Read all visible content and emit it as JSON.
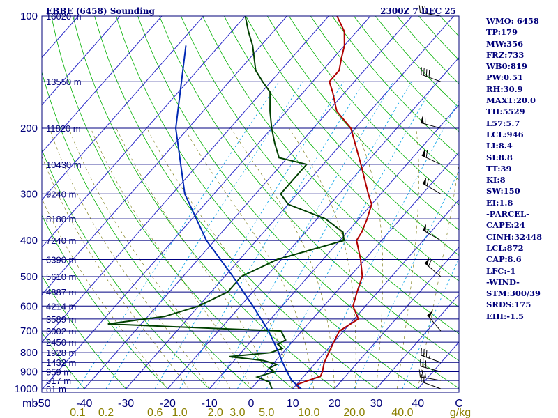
{
  "header": {
    "station": "EBBE (6458) Sounding",
    "time": "2300Z  7 DEC 25"
  },
  "indices": [
    "WMO: 6458",
    "TP:179",
    "MW:356",
    "FRZ:733",
    "WB0:819",
    "PW:0.51",
    "RH:30.9",
    "MAXT:20.0",
    "TH:5529",
    "L57:5.7",
    "LCL:946",
    "LI:8.4",
    "SI:8.8",
    "TT:39",
    "KI:8",
    "SW:150",
    "EI:1.8",
    "-PARCEL-",
    "CAPE:24",
    "CINH:32448",
    "LCL:872",
    "CAP:8.6",
    "LFC:-1",
    "-WIND-",
    "STM:300/39",
    "SRDS:175",
    "EHI:-1.5"
  ],
  "colors": {
    "axis": "#00007a",
    "isobar": "#000080",
    "isotherm": "#2828c8",
    "dry_adiabat": "#00b000",
    "moist_adiabat": "#707000",
    "mixing_ratio": "#00a0e8",
    "temperature": "#b00000",
    "dewpoint": "#004000",
    "parcel": "#0028b4",
    "wind": "#000000"
  },
  "chart_data": {
    "type": "line",
    "title": "EBBE (6458) Sounding",
    "pressure_ticks": [
      "100",
      "200",
      "300",
      "400",
      "500",
      "600",
      "700",
      "800",
      "900",
      "1000"
    ],
    "pressure_unit": "mb",
    "height_ticks": [
      {
        "p": 100,
        "label": "16020 m"
      },
      {
        "p": 150,
        "label": "13550 m"
      },
      {
        "p": 200,
        "label": "11820 m"
      },
      {
        "p": 250,
        "label": "10430 m"
      },
      {
        "p": 300,
        "label": "9240 m"
      },
      {
        "p": 350,
        "label": "8180 m"
      },
      {
        "p": 400,
        "label": "7240 m"
      },
      {
        "p": 450,
        "label": "6390 m"
      },
      {
        "p": 500,
        "label": "5610 m"
      },
      {
        "p": 550,
        "label": "4887 m"
      },
      {
        "p": 600,
        "label": "4214 m"
      },
      {
        "p": 650,
        "label": "3589 m"
      },
      {
        "p": 700,
        "label": "3002 m"
      },
      {
        "p": 750,
        "label": "2450 m"
      },
      {
        "p": 800,
        "label": "1928 m"
      },
      {
        "p": 850,
        "label": "1432 m"
      },
      {
        "p": 900,
        "label": "959 m"
      },
      {
        "p": 950,
        "label": "517 m"
      },
      {
        "p": 1000,
        "label": "81 m"
      }
    ],
    "temperature_ticks": [
      "-50",
      "-40",
      "-30",
      "-20",
      "-10",
      "0",
      "10",
      "20",
      "30",
      "40",
      "C"
    ],
    "mixing_ratio_ticks": [
      "0.1",
      "0.2",
      "0.6",
      "1.0",
      "2.0",
      "3.0",
      "5.0",
      "10.0",
      "20.0",
      "40.0",
      "g/kg"
    ],
    "series": [
      {
        "name": "temperature",
        "points": [
          [
            1000,
            11.5
          ],
          [
            975,
            10
          ],
          [
            950,
            12
          ],
          [
            925,
            14
          ],
          [
            900,
            13.5
          ],
          [
            850,
            12
          ],
          [
            800,
            11
          ],
          [
            750,
            10
          ],
          [
            700,
            9
          ],
          [
            650,
            11
          ],
          [
            600,
            7
          ],
          [
            550,
            5
          ],
          [
            500,
            3
          ],
          [
            450,
            -1
          ],
          [
            400,
            -6
          ],
          [
            380,
            -6.5
          ],
          [
            350,
            -8
          ],
          [
            320,
            -10
          ],
          [
            300,
            -13
          ],
          [
            250,
            -21
          ],
          [
            200,
            -31
          ],
          [
            180,
            -38
          ],
          [
            160,
            -43
          ],
          [
            150,
            -46
          ],
          [
            140,
            -46
          ],
          [
            130,
            -48
          ],
          [
            120,
            -50
          ],
          [
            110,
            -53
          ],
          [
            100,
            -58
          ]
        ]
      },
      {
        "name": "dewpoint",
        "points": [
          [
            1000,
            5
          ],
          [
            960,
            3
          ],
          [
            930,
            -1
          ],
          [
            900,
            2
          ],
          [
            880,
            0
          ],
          [
            860,
            1
          ],
          [
            840,
            -3
          ],
          [
            820,
            -12
          ],
          [
            800,
            -3
          ],
          [
            780,
            -1
          ],
          [
            760,
            -3
          ],
          [
            740,
            -2
          ],
          [
            700,
            -5
          ],
          [
            690,
            -20
          ],
          [
            670,
            -48
          ],
          [
            640,
            -36
          ],
          [
            600,
            -30
          ],
          [
            550,
            -26
          ],
          [
            500,
            -26
          ],
          [
            450,
            -21
          ],
          [
            400,
            -9
          ],
          [
            380,
            -11
          ],
          [
            350,
            -18
          ],
          [
            320,
            -30
          ],
          [
            300,
            -34
          ],
          [
            250,
            -34
          ],
          [
            240,
            -42
          ],
          [
            220,
            -46
          ],
          [
            200,
            -50
          ],
          [
            180,
            -54
          ],
          [
            160,
            -58
          ],
          [
            150,
            -62
          ],
          [
            140,
            -66
          ],
          [
            120,
            -72
          ],
          [
            110,
            -76
          ],
          [
            100,
            -80
          ]
        ]
      },
      {
        "name": "parcel",
        "points": [
          [
            1000,
            12
          ],
          [
            950,
            8
          ],
          [
            900,
            5
          ],
          [
            850,
            2
          ],
          [
            800,
            -1
          ],
          [
            700,
            -8
          ],
          [
            600,
            -17
          ],
          [
            500,
            -28
          ],
          [
            400,
            -42
          ],
          [
            300,
            -57
          ],
          [
            200,
            -73
          ],
          [
            120,
            -88
          ]
        ]
      }
    ],
    "wind_barbs": [
      {
        "p": 1000,
        "dir": 290,
        "kt": 20
      },
      {
        "p": 950,
        "dir": 280,
        "kt": 30
      },
      {
        "p": 900,
        "dir": 285,
        "kt": 30
      },
      {
        "p": 850,
        "dir": 290,
        "kt": 35
      },
      {
        "p": 700,
        "dir": 320,
        "kt": 50
      },
      {
        "p": 500,
        "dir": 310,
        "kt": 60
      },
      {
        "p": 400,
        "dir": 300,
        "kt": 55
      },
      {
        "p": 300,
        "dir": 300,
        "kt": 60
      },
      {
        "p": 250,
        "dir": 295,
        "kt": 60
      },
      {
        "p": 200,
        "dir": 285,
        "kt": 60
      },
      {
        "p": 150,
        "dir": 290,
        "kt": 40
      },
      {
        "p": 100,
        "dir": 280,
        "kt": 30
      }
    ]
  }
}
